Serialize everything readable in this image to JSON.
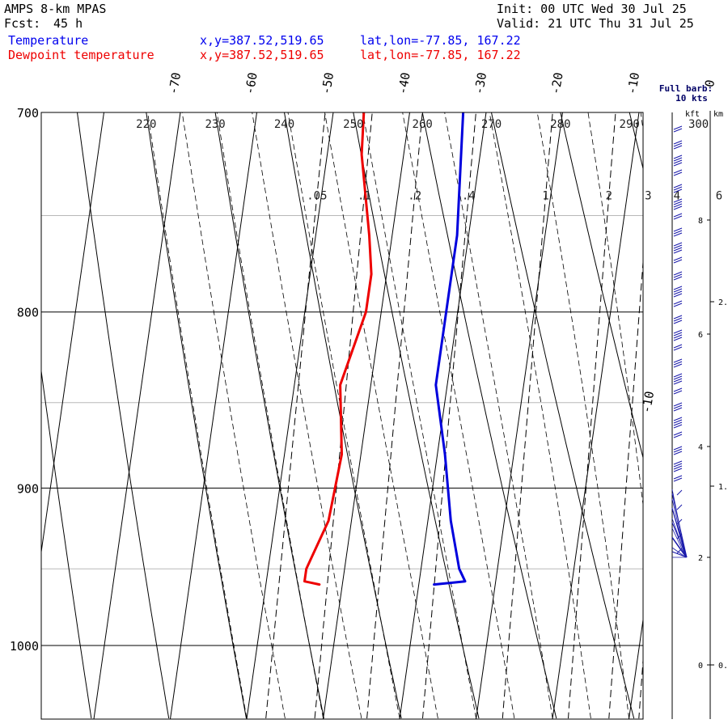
{
  "header": {
    "model": "AMPS 8-km MPAS",
    "fcst_label": "Fcst:",
    "fcst_value": "45 h",
    "init": "Init: 00 UTC Wed 30 Jul 25",
    "valid": "Valid: 21 UTC Thu 31 Jul 25",
    "temp_label": "Temperature",
    "dew_label": "Dewpoint temperature",
    "xy": "x,y=387.52,519.65",
    "latlon": "lat,lon=-77.85, 167.22"
  },
  "colors": {
    "temperature": "#0000dd",
    "dewpoint": "#ee0000"
  },
  "chart_data": {
    "type": "line",
    "pressure_levels": [
      700,
      800,
      900,
      1000
    ],
    "skewed_temp_ticks": [
      -70,
      -60,
      -50,
      -40,
      -30,
      -20,
      -10,
      0
    ],
    "skewed_temp_ticks_bottom": [
      -10
    ],
    "theta_labels": [
      220,
      230,
      240,
      250,
      260,
      270,
      280,
      290,
      300
    ],
    "mixing_ratio_labels": [
      ".05",
      ".1",
      ".2",
      ".4",
      "1",
      "2",
      "3",
      "4",
      "6"
    ],
    "series": [
      {
        "name": "Temperature",
        "points": [
          [
            700,
            -33
          ],
          [
            760,
            -31.5
          ],
          [
            800,
            -31.5
          ],
          [
            840,
            -31.5
          ],
          [
            880,
            -29
          ],
          [
            920,
            -27
          ],
          [
            950,
            -25
          ],
          [
            958,
            -24
          ],
          [
            960,
            -28
          ]
        ]
      },
      {
        "name": "Dewpoint temperature",
        "points": [
          [
            700,
            -46
          ],
          [
            720,
            -45.5
          ],
          [
            760,
            -43
          ],
          [
            780,
            -42
          ],
          [
            800,
            -42
          ],
          [
            840,
            -44
          ],
          [
            880,
            -42.5
          ],
          [
            920,
            -43
          ],
          [
            950,
            -45
          ],
          [
            958,
            -45
          ],
          [
            960,
            -43
          ]
        ]
      }
    ],
    "wind_panel": {
      "title": "Full barb:",
      "subtitle": "10 kts",
      "unit_left": "kft",
      "unit_right": "km",
      "kft_ticks": [
        "8",
        "6",
        "4",
        "2",
        "0"
      ],
      "km_ticks": [
        "2.",
        "1.",
        "0."
      ]
    }
  }
}
